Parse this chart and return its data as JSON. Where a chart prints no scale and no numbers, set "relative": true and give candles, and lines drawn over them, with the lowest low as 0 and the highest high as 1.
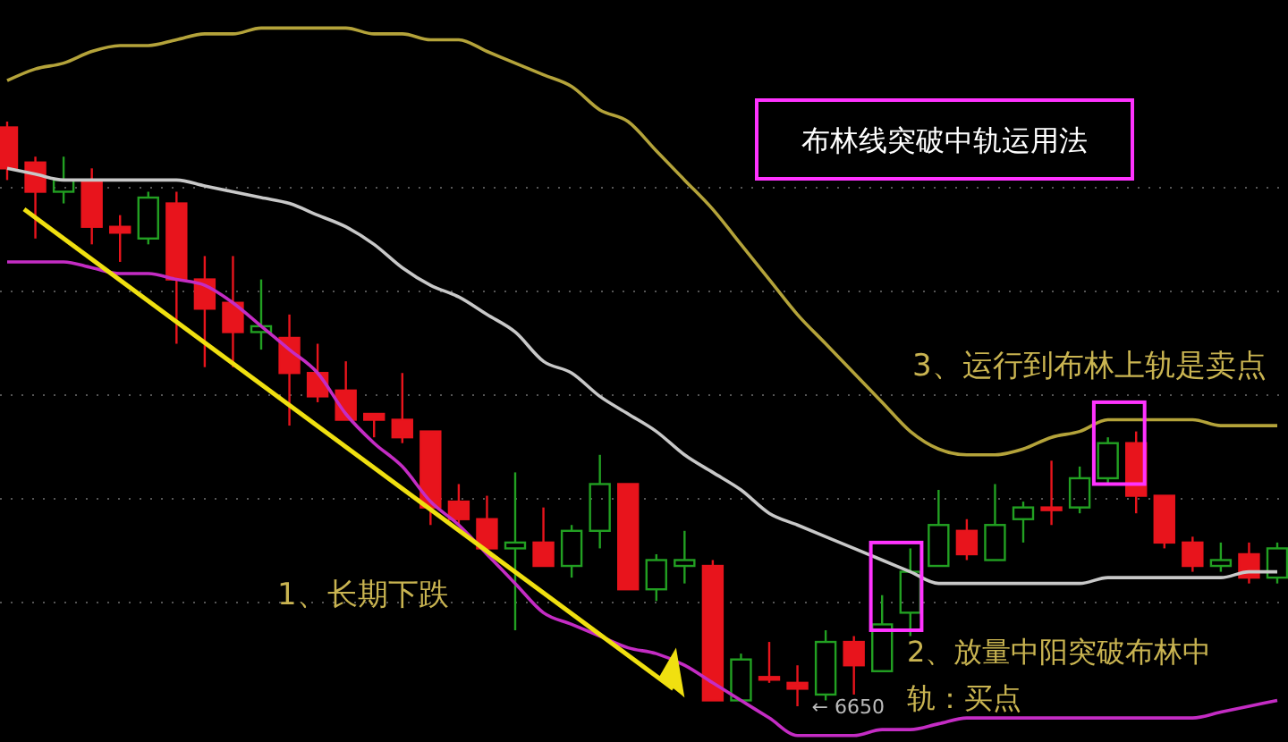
{
  "chart_data": {
    "type": "candlestick",
    "title": "布林线突破中轨运用法",
    "relative": true,
    "grid": true,
    "categories": [
      null,
      null,
      null,
      null,
      null,
      null,
      null,
      null,
      null,
      null,
      null,
      null,
      null,
      null,
      null,
      null,
      null,
      null,
      null,
      null,
      null,
      null,
      null,
      null,
      null,
      null,
      null,
      null,
      null,
      null,
      null,
      null,
      null,
      null,
      null,
      null,
      null,
      null,
      null,
      null,
      null,
      null,
      null,
      null,
      null,
      null
    ],
    "ohlc": [
      [
        0.99,
        1,
        0.9,
        0.92
      ],
      [
        0.93,
        0.94,
        0.8,
        0.88
      ],
      [
        0.88,
        0.94,
        0.86,
        0.9
      ],
      [
        0.9,
        0.92,
        0.79,
        0.82
      ],
      [
        0.82,
        0.84,
        0.76,
        0.81
      ],
      [
        0.8,
        0.88,
        0.79,
        0.87
      ],
      [
        0.86,
        0.88,
        0.62,
        0.73
      ],
      [
        0.73,
        0.77,
        0.58,
        0.68
      ],
      [
        0.69,
        0.77,
        0.58,
        0.64
      ],
      [
        0.64,
        0.73,
        0.61,
        0.65
      ],
      [
        0.63,
        0.67,
        0.48,
        0.57
      ],
      [
        0.57,
        0.62,
        0.52,
        0.53
      ],
      [
        0.54,
        0.59,
        0.49,
        0.49
      ],
      [
        0.5,
        0.5,
        0.46,
        0.49
      ],
      [
        0.49,
        0.57,
        0.45,
        0.46
      ],
      [
        0.47,
        0.47,
        0.31,
        0.34
      ],
      [
        0.35,
        0.38,
        0.31,
        0.32
      ],
      [
        0.32,
        0.36,
        0.26,
        0.27
      ],
      [
        0.27,
        0.4,
        0.13,
        0.28
      ],
      [
        0.28,
        0.34,
        0.24,
        0.24
      ],
      [
        0.24,
        0.31,
        0.22,
        0.3
      ],
      [
        0.3,
        0.43,
        0.27,
        0.38
      ],
      [
        0.38,
        0.38,
        0.2,
        0.2
      ],
      [
        0.2,
        0.26,
        0.18,
        0.25
      ],
      [
        0.24,
        0.3,
        0.21,
        0.25
      ],
      [
        0.24,
        0.25,
        0.01,
        0.01
      ],
      [
        0.01,
        0.09,
        0.01,
        0.08
      ],
      [
        0.05,
        0.11,
        0.04,
        0.05
      ],
      [
        0.04,
        0.07,
        0,
        0.03
      ],
      [
        0.02,
        0.13,
        0.01,
        0.11
      ],
      [
        0.11,
        0.12,
        0.02,
        0.07
      ],
      [
        0.06,
        0.19,
        0.06,
        0.14
      ],
      [
        0.16,
        0.27,
        0.12,
        0.23
      ],
      [
        0.24,
        0.37,
        0.24,
        0.31
      ],
      [
        0.3,
        0.32,
        0.25,
        0.26
      ],
      [
        0.25,
        0.38,
        0.25,
        0.31
      ],
      [
        0.32,
        0.35,
        0.28,
        0.34
      ],
      [
        0.34,
        0.42,
        0.31,
        0.34
      ],
      [
        0.34,
        0.41,
        0.33,
        0.39
      ],
      [
        0.39,
        0.46,
        0.38,
        0.45
      ],
      [
        0.45,
        0.47,
        0.33,
        0.36
      ],
      [
        0.36,
        0.36,
        0.27,
        0.28
      ],
      [
        0.28,
        0.29,
        0.23,
        0.24
      ],
      [
        0.24,
        0.28,
        0.23,
        0.25
      ],
      [
        0.26,
        0.28,
        0.21,
        0.22
      ],
      [
        0.22,
        0.28,
        0.21,
        0.27
      ]
    ],
    "series": [
      {
        "type": "line",
        "color": "#b4a33a",
        "values": [
          1.07,
          1.09,
          1.1,
          1.12,
          1.13,
          1.13,
          1.14,
          1.15,
          1.15,
          1.16,
          1.16,
          1.16,
          1.16,
          1.15,
          1.15,
          1.14,
          1.14,
          1.12,
          1.1,
          1.08,
          1.06,
          1.02,
          1,
          0.95,
          0.9,
          0.85,
          0.79,
          0.73,
          0.67,
          0.62,
          0.57,
          0.52,
          0.47,
          0.44,
          0.43,
          0.43,
          0.44,
          0.46,
          0.47,
          0.49,
          0.49,
          0.49,
          0.49,
          0.48,
          0.48,
          0.48
        ]
      },
      {
        "type": "line",
        "color": "#c8c8c8",
        "values": [
          0.92,
          0.91,
          0.9,
          0.9,
          0.9,
          0.9,
          0.9,
          0.89,
          0.88,
          0.87,
          0.86,
          0.84,
          0.82,
          0.79,
          0.75,
          0.72,
          0.7,
          0.67,
          0.64,
          0.59,
          0.57,
          0.53,
          0.5,
          0.47,
          0.43,
          0.4,
          0.37,
          0.33,
          0.31,
          0.29,
          0.27,
          0.25,
          0.23,
          0.21,
          0.21,
          0.21,
          0.21,
          0.21,
          0.21,
          0.22,
          0.22,
          0.22,
          0.22,
          0.22,
          0.23,
          0.23
        ]
      },
      {
        "type": "line",
        "color": "#c42cc4",
        "values": [
          0.76,
          0.76,
          0.76,
          0.75,
          0.74,
          0.74,
          0.73,
          0.72,
          0.69,
          0.65,
          0.61,
          0.57,
          0.5,
          0.45,
          0.41,
          0.35,
          0.31,
          0.26,
          0.21,
          0.16,
          0.14,
          0.12,
          0.1,
          0.09,
          0.07,
          0.04,
          0.01,
          -0.02,
          -0.05,
          -0.05,
          -0.05,
          -0.04,
          -0.04,
          -0.03,
          -0.02,
          -0.02,
          -0.02,
          -0.02,
          -0.02,
          -0.02,
          -0.02,
          -0.02,
          -0.02,
          -0.01,
          0,
          0.01
        ]
      }
    ],
    "annotations": [
      "1、长期下跌",
      "2、放量中阳突破布林中轨：买点",
      "3、运行到布林上轨是卖点",
      "← 6650"
    ]
  }
}
